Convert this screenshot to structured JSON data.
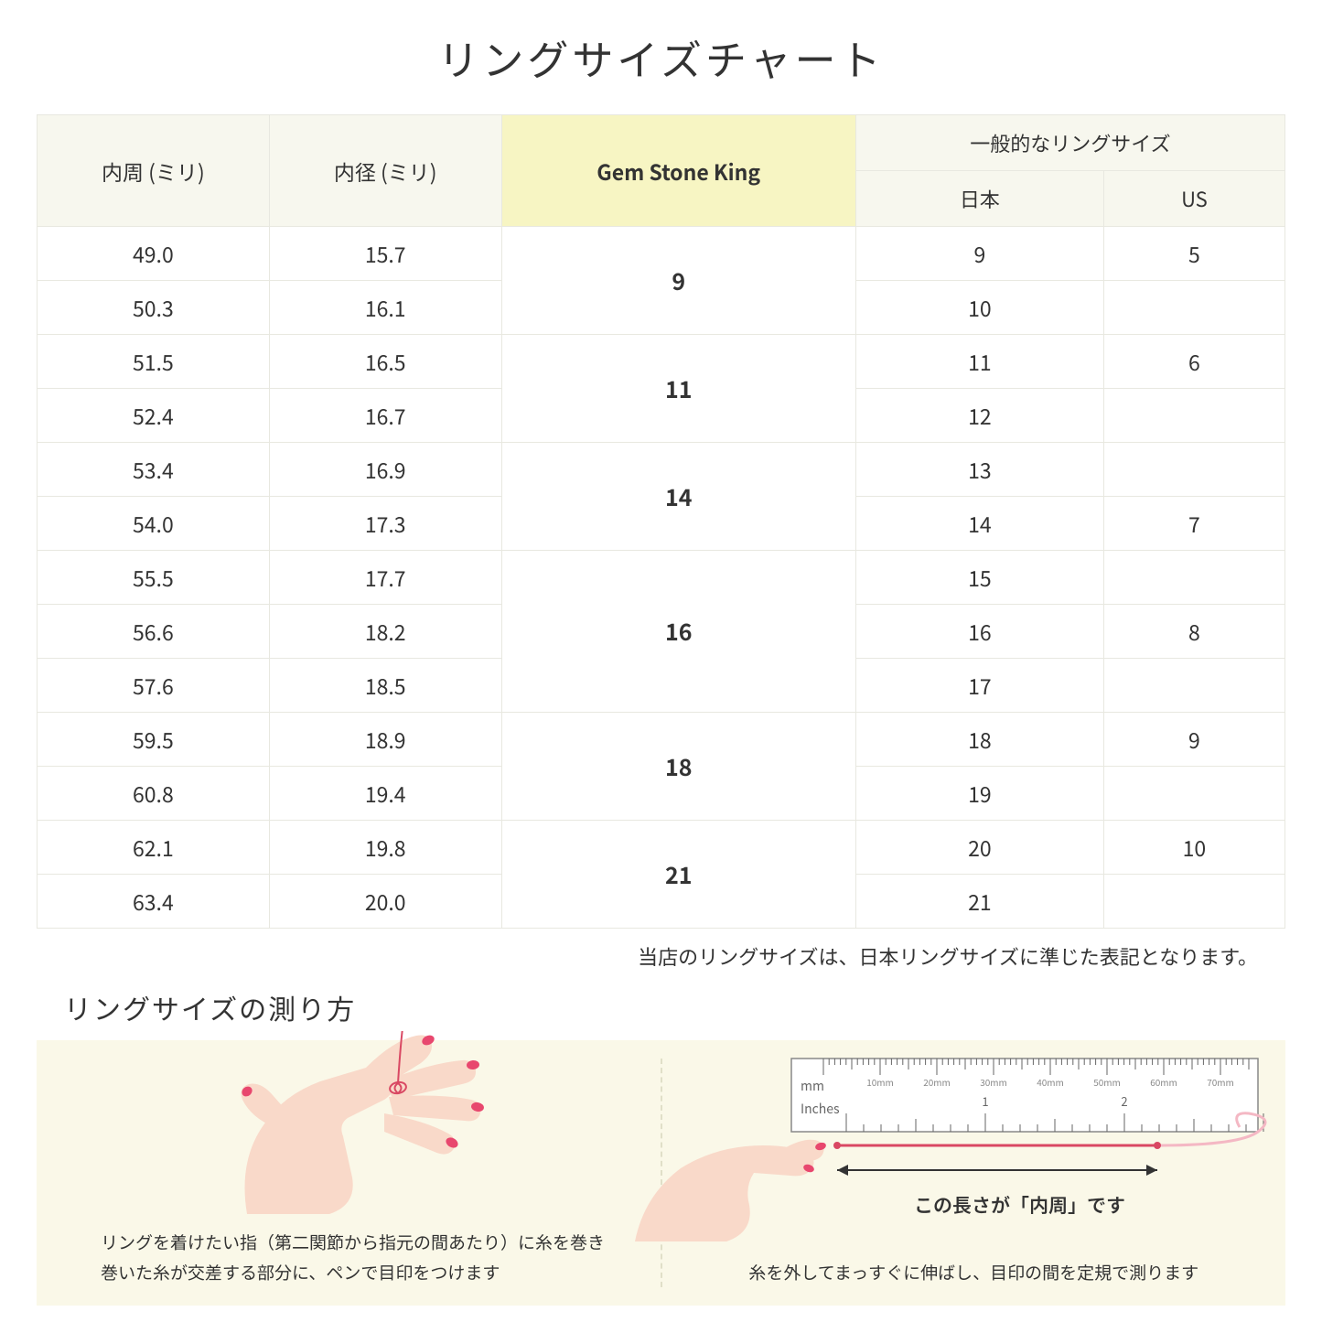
{
  "title": "リングサイズチャート",
  "headers": {
    "col1": "内周 (ミリ)",
    "col2": "内径 (ミリ)",
    "col3": "Gem Stone King",
    "col4_top": "一般的なリングサイズ",
    "col4a": "日本",
    "col4b": "US"
  },
  "rows": [
    {
      "c": "49.0",
      "d": "15.7",
      "jp": "9",
      "us": "5"
    },
    {
      "c": "50.3",
      "d": "16.1",
      "jp": "10",
      "us": ""
    },
    {
      "c": "51.5",
      "d": "16.5",
      "jp": "11",
      "us": "6"
    },
    {
      "c": "52.4",
      "d": "16.7",
      "jp": "12",
      "us": ""
    },
    {
      "c": "53.4",
      "d": "16.9",
      "jp": "13",
      "us": ""
    },
    {
      "c": "54.0",
      "d": "17.3",
      "jp": "14",
      "us": "7"
    },
    {
      "c": "55.5",
      "d": "17.7",
      "jp": "15",
      "us": ""
    },
    {
      "c": "56.6",
      "d": "18.2",
      "jp": "16",
      "us": "8"
    },
    {
      "c": "57.6",
      "d": "18.5",
      "jp": "17",
      "us": ""
    },
    {
      "c": "59.5",
      "d": "18.9",
      "jp": "18",
      "us": "9"
    },
    {
      "c": "60.8",
      "d": "19.4",
      "jp": "19",
      "us": ""
    },
    {
      "c": "62.1",
      "d": "19.8",
      "jp": "20",
      "us": "10"
    },
    {
      "c": "63.4",
      "d": "20.0",
      "jp": "21",
      "us": ""
    }
  ],
  "gsk_groups": [
    {
      "val": "9",
      "span": 2
    },
    {
      "val": "11",
      "span": 2
    },
    {
      "val": "14",
      "span": 2
    },
    {
      "val": "16",
      "span": 3
    },
    {
      "val": "18",
      "span": 2
    },
    {
      "val": "21",
      "span": 2
    }
  ],
  "note": "当店のリングサイズは、日本リングサイズに準じた表記となります。",
  "subtitle": "リングサイズの測り方",
  "caption_left": "リングを着けたい指（第二関節から指元の間あたり）に糸を巻き\n巻いた糸が交差する部分に、ペンで目印をつけます",
  "caption_right": "糸を外してまっすぐに伸ばし、目印の間を定規で測ります",
  "ruler_label": "この長さが「内周」です",
  "ruler": {
    "mm_label": "mm",
    "in_label": "Inches",
    "mm_ticks": [
      "10mm",
      "20mm",
      "30mm",
      "40mm",
      "50mm",
      "60mm",
      "70mm"
    ],
    "in_ticks": [
      "1",
      "2"
    ]
  },
  "colors": {
    "header_bg": "#f7f7ee",
    "gsk_bg": "#f7f5c3",
    "border": "#e8e8e0",
    "howto_bg": "#faf8e8",
    "skin": "#f9d9c9",
    "skin_dark": "#f0c4ad",
    "nail": "#e8476e",
    "thread": "#d94863",
    "ruler_body": "#ffffff",
    "ruler_border": "#333333"
  }
}
